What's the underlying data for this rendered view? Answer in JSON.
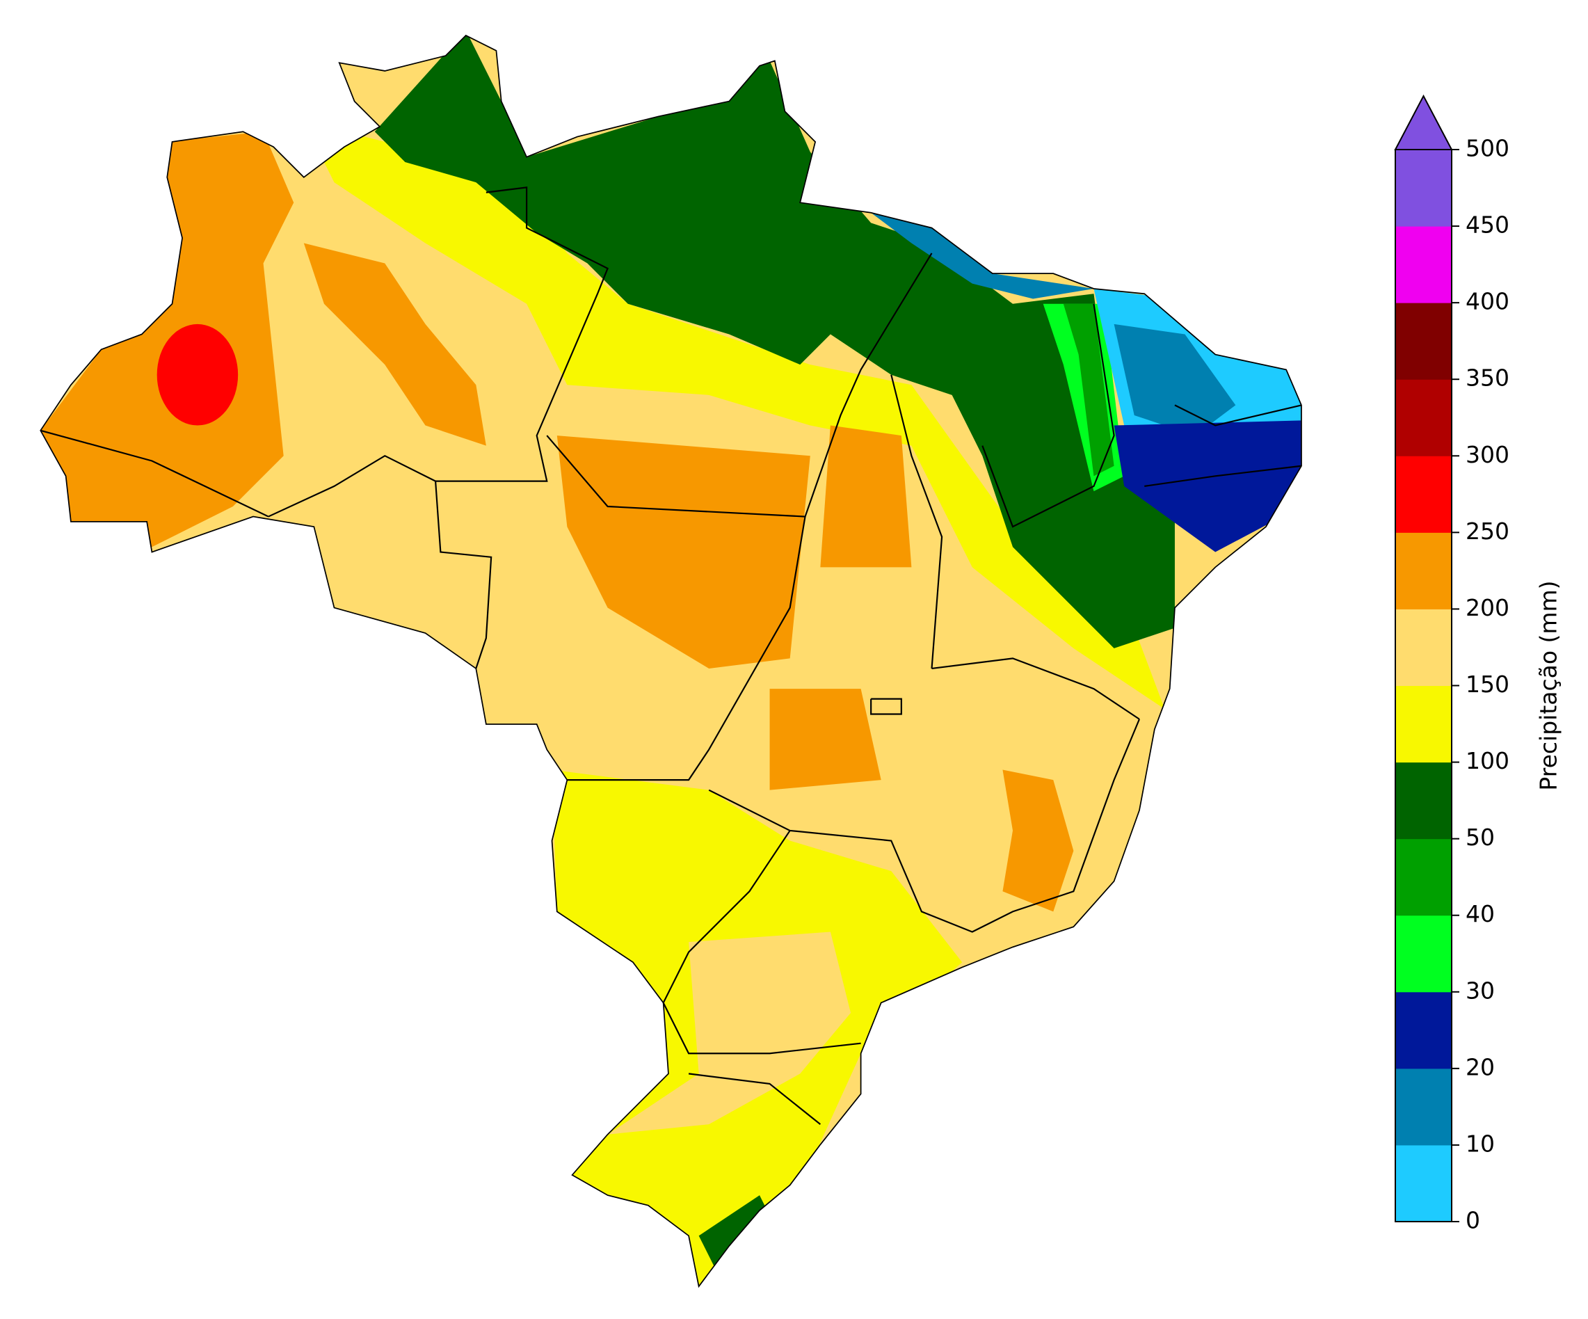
{
  "colorbar": {
    "label": "Precipitação (mm)",
    "ticks": [
      0,
      10,
      20,
      30,
      40,
      50,
      100,
      150,
      200,
      250,
      300,
      350,
      400,
      450,
      500
    ],
    "colors": [
      "#1ecbff",
      "#0080b0",
      "#00189a",
      "#00ff20",
      "#00a000",
      "#006400",
      "#f8f800",
      "#ffdc6e",
      "#f79800",
      "#ff0000",
      "#b00000",
      "#800000",
      "#f000f0",
      "#8050e0"
    ],
    "extend_color": "#8050e0"
  }
}
